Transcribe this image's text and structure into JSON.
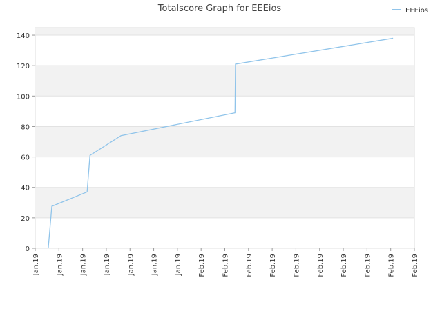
{
  "chart_data": {
    "type": "line",
    "title": "Totalscore Graph for EEEios",
    "series": [
      {
        "name": "EEEios",
        "color": "#90c4ea",
        "x": [
          0.55,
          0.7,
          2.19,
          2.31,
          3.62,
          8.43,
          8.45,
          15.1
        ],
        "values": [
          0,
          27.6,
          37,
          61,
          74,
          89,
          121,
          138
        ]
      }
    ],
    "xlim": [
      0,
      16
    ],
    "xticks": [
      {
        "value": 0,
        "label": "Jan.19"
      },
      {
        "value": 1,
        "label": "Jan.19"
      },
      {
        "value": 2,
        "label": "Jan.19"
      },
      {
        "value": 3,
        "label": "Jan.19"
      },
      {
        "value": 4,
        "label": "Jan.19"
      },
      {
        "value": 5,
        "label": "Jan.19"
      },
      {
        "value": 6,
        "label": "Jan.19"
      },
      {
        "value": 7,
        "label": "Feb.19"
      },
      {
        "value": 8,
        "label": "Feb.19"
      },
      {
        "value": 9,
        "label": "Feb.19"
      },
      {
        "value": 10,
        "label": "Feb.19"
      },
      {
        "value": 11,
        "label": "Feb.19"
      },
      {
        "value": 12,
        "label": "Feb.19"
      },
      {
        "value": 13,
        "label": "Feb.19"
      },
      {
        "value": 14,
        "label": "Feb.19"
      },
      {
        "value": 15,
        "label": "Feb.19"
      },
      {
        "value": 16,
        "label": "Feb.19"
      }
    ],
    "ylim": [
      0,
      145
    ],
    "yticks": [
      0,
      20,
      40,
      60,
      80,
      100,
      120,
      140
    ],
    "grid": true,
    "legend": "top-right"
  }
}
